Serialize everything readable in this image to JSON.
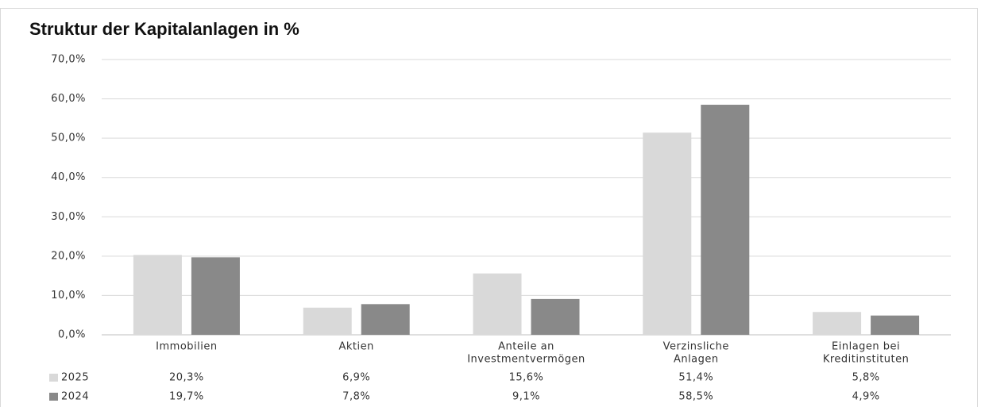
{
  "chart_data": {
    "type": "bar",
    "title": "Struktur der Kapitalanlagen in %",
    "categories": [
      [
        "Immobilien"
      ],
      [
        "Aktien"
      ],
      [
        "Anteile an",
        "Investmentvermögen"
      ],
      [
        "Verzinsliche",
        "Anlagen"
      ],
      [
        "Einlagen bei",
        "Kreditinstituten"
      ]
    ],
    "series": [
      {
        "name": "2025",
        "color": "#d9d9d9",
        "values": [
          20.3,
          6.9,
          15.6,
          51.4,
          5.8
        ],
        "value_labels": [
          "20,3%",
          "6,9%",
          "15,6%",
          "51,4%",
          "5,8%"
        ]
      },
      {
        "name": "2024",
        "color": "#898989",
        "values": [
          19.7,
          7.8,
          9.1,
          58.5,
          4.9
        ],
        "value_labels": [
          "19,7%",
          "7,8%",
          "9,1%",
          "58,5%",
          "4,9%"
        ]
      }
    ],
    "ylim": [
      0,
      70
    ],
    "yticks": [
      {
        "value": 0,
        "label": "0,0%"
      },
      {
        "value": 10,
        "label": "10,0%"
      },
      {
        "value": 20,
        "label": "20,0%"
      },
      {
        "value": 30,
        "label": "30,0%"
      },
      {
        "value": 40,
        "label": "40,0%"
      },
      {
        "value": 50,
        "label": "50,0%"
      },
      {
        "value": 60,
        "label": "60,0%"
      },
      {
        "value": 70,
        "label": "70,0%"
      }
    ],
    "grid": true
  }
}
